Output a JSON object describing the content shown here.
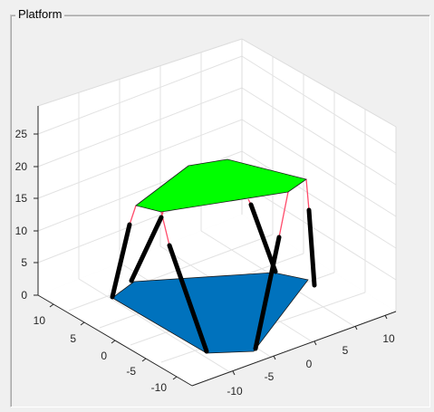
{
  "panel": {
    "title": "Platform"
  },
  "colors": {
    "background": "#f0f0f0",
    "axes_face": "#ffffff",
    "grid": "#e2e2e2",
    "axis_line": "#262626",
    "top_platform": "#00ff00",
    "base_platform": "#0072bd",
    "legs": "#000000",
    "leg_extensions": "#ff4b6a"
  },
  "axes": {
    "x_ticks": [
      "-10",
      "-5",
      "0",
      "5",
      "10"
    ],
    "y_ticks": [
      "-10",
      "-5",
      "0",
      "5",
      "10"
    ],
    "z_ticks": [
      "0",
      "5",
      "10",
      "15",
      "20",
      "25"
    ],
    "grid": true
  }
}
